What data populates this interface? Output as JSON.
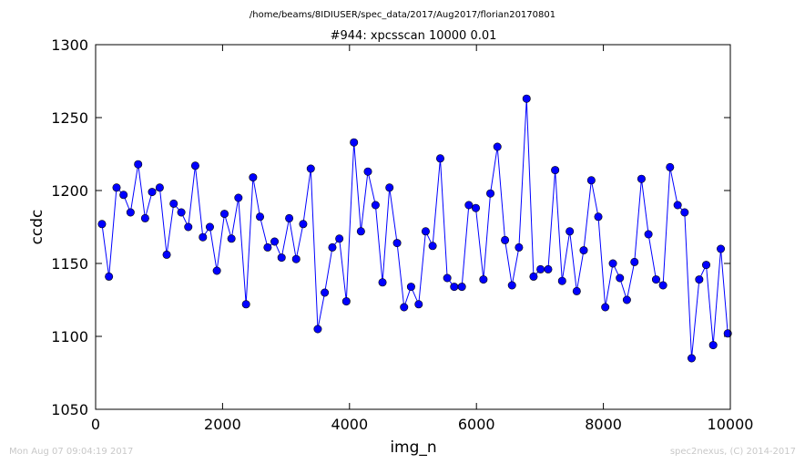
{
  "chart_data": {
    "type": "line",
    "suptitle": "/home/beams/8IDIUSER/spec_data/2017/Aug2017/florian20170801",
    "title": "#944: xpcsscan 10000 0.01",
    "xlabel": "img_n",
    "ylabel": "ccdc",
    "xlim": [
      0,
      10000
    ],
    "ylim": [
      1050,
      1300
    ],
    "xticks": [
      "0",
      "2000",
      "4000",
      "6000",
      "8000",
      "10000"
    ],
    "yticks": [
      "1050",
      "1100",
      "1150",
      "1200",
      "1250",
      "1300"
    ],
    "marker": "circle",
    "color": "#0000ff",
    "grid": false,
    "series": [
      {
        "points": [
          [
            100,
            1177
          ],
          [
            210,
            1141
          ],
          [
            330,
            1202
          ],
          [
            440,
            1197
          ],
          [
            550,
            1185
          ],
          [
            670,
            1218
          ],
          [
            780,
            1181
          ],
          [
            890,
            1199
          ],
          [
            1010,
            1202
          ],
          [
            1120,
            1156
          ],
          [
            1230,
            1191
          ],
          [
            1350,
            1185
          ],
          [
            1460,
            1175
          ],
          [
            1570,
            1217
          ],
          [
            1690,
            1168
          ],
          [
            1800,
            1175
          ],
          [
            1910,
            1145
          ],
          [
            2030,
            1184
          ],
          [
            2140,
            1167
          ],
          [
            2250,
            1195
          ],
          [
            2370,
            1122
          ],
          [
            2480,
            1209
          ],
          [
            2590,
            1182
          ],
          [
            2710,
            1161
          ],
          [
            2820,
            1165
          ],
          [
            2930,
            1154
          ],
          [
            3050,
            1181
          ],
          [
            3160,
            1153
          ],
          [
            3270,
            1177
          ],
          [
            3390,
            1215
          ],
          [
            3500,
            1105
          ],
          [
            3610,
            1130
          ],
          [
            3730,
            1161
          ],
          [
            3840,
            1167
          ],
          [
            3950,
            1124
          ],
          [
            4070,
            1233
          ],
          [
            4180,
            1172
          ],
          [
            4290,
            1213
          ],
          [
            4410,
            1190
          ],
          [
            4520,
            1137
          ],
          [
            4630,
            1202
          ],
          [
            4750,
            1164
          ],
          [
            4860,
            1120
          ],
          [
            4970,
            1134
          ],
          [
            5090,
            1122
          ],
          [
            5200,
            1172
          ],
          [
            5310,
            1162
          ],
          [
            5430,
            1222
          ],
          [
            5540,
            1140
          ],
          [
            5650,
            1134
          ],
          [
            5770,
            1134
          ],
          [
            5880,
            1190
          ],
          [
            5990,
            1188
          ],
          [
            6110,
            1139
          ],
          [
            6220,
            1198
          ],
          [
            6330,
            1230
          ],
          [
            6450,
            1166
          ],
          [
            6560,
            1135
          ],
          [
            6670,
            1161
          ],
          [
            6790,
            1263
          ],
          [
            6900,
            1141
          ],
          [
            7010,
            1146
          ],
          [
            7130,
            1146
          ],
          [
            7240,
            1214
          ],
          [
            7350,
            1138
          ],
          [
            7470,
            1172
          ],
          [
            7580,
            1131
          ],
          [
            7690,
            1159
          ],
          [
            7810,
            1207
          ],
          [
            7920,
            1182
          ],
          [
            8030,
            1120
          ],
          [
            8150,
            1150
          ],
          [
            8260,
            1140
          ],
          [
            8370,
            1125
          ],
          [
            8490,
            1151
          ],
          [
            8600,
            1208
          ],
          [
            8710,
            1170
          ],
          [
            8830,
            1139
          ],
          [
            8940,
            1135
          ],
          [
            9050,
            1216
          ],
          [
            9170,
            1190
          ],
          [
            9280,
            1185
          ],
          [
            9390,
            1085
          ],
          [
            9510,
            1139
          ],
          [
            9620,
            1149
          ],
          [
            9730,
            1094
          ],
          [
            9850,
            1160
          ],
          [
            9960,
            1102
          ]
        ]
      }
    ]
  },
  "footer": {
    "left": "Mon Aug 07 09:04:19 2017",
    "right": "spec2nexus, (C) 2014-2017"
  }
}
